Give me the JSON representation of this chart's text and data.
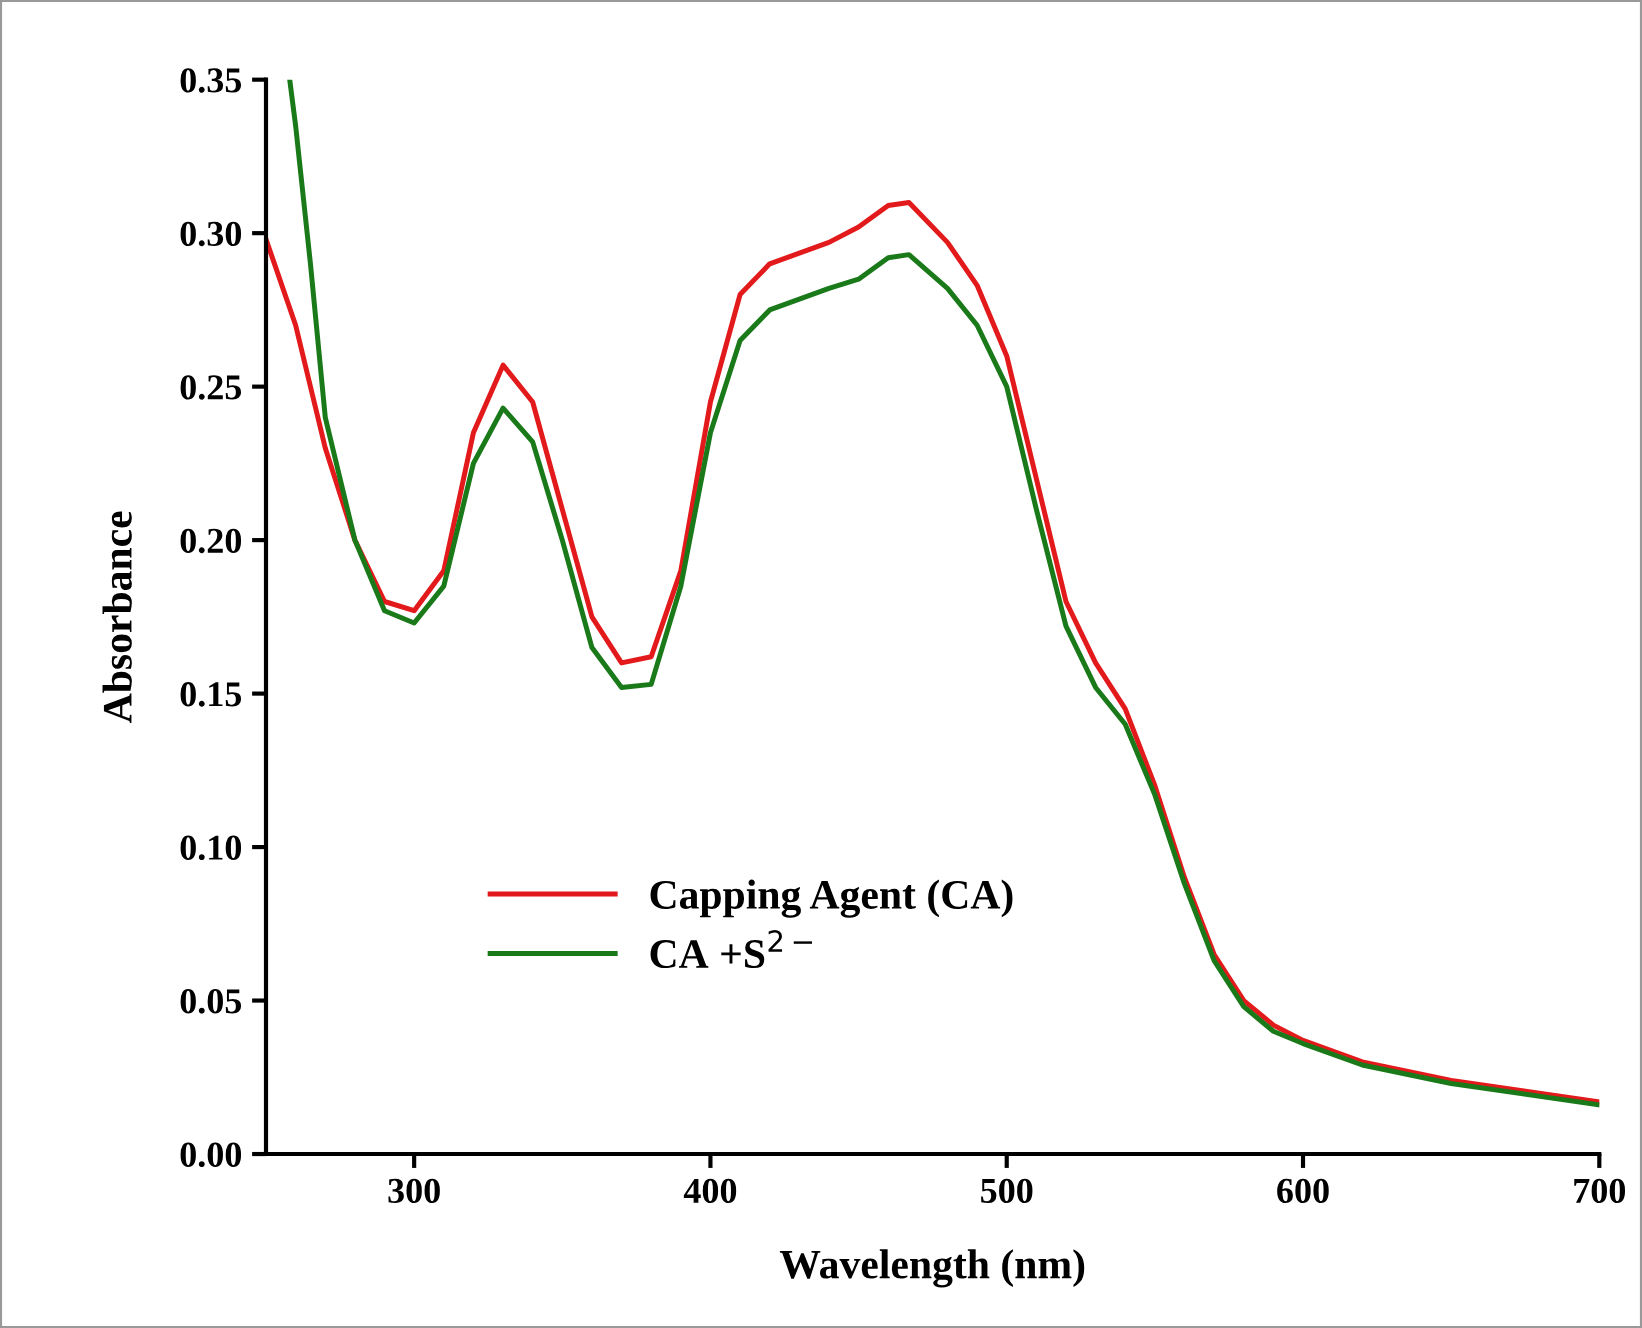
{
  "chart_data": {
    "type": "line",
    "xlabel": "Wavelength (nm)",
    "ylabel": "Absorbance",
    "xlim": [
      250,
      700
    ],
    "xticks": [
      300,
      400,
      500,
      600,
      700
    ],
    "ylim": [
      0,
      0.35
    ],
    "yticks": [
      {
        "value": 0,
        "label": "0.00"
      },
      {
        "value": 0.05,
        "label": "0.05"
      },
      {
        "value": 0.1,
        "label": "0.10"
      },
      {
        "value": 0.15,
        "label": "0.15"
      },
      {
        "value": 0.2,
        "label": "0.20"
      },
      {
        "value": 0.25,
        "label": "0.25"
      },
      {
        "value": 0.3,
        "label": "0.30"
      },
      {
        "value": 0.35,
        "label": "0.35"
      }
    ],
    "grid": false,
    "legend": "bottom left",
    "marker": "none",
    "line_style": "solid",
    "series": [
      {
        "name": "Capping Agent (CA)",
        "color": "#e31a1c",
        "x": [
          250,
          260,
          270,
          280,
          290,
          300,
          310,
          320,
          330,
          340,
          350,
          360,
          370,
          380,
          390,
          400,
          410,
          420,
          440,
          450,
          460,
          467,
          480,
          490,
          500,
          510,
          520,
          530,
          540,
          550,
          560,
          570,
          580,
          590,
          600,
          620,
          650,
          700
        ],
        "values": [
          0.298,
          0.27,
          0.23,
          0.2,
          0.18,
          0.177,
          0.19,
          0.235,
          0.257,
          0.245,
          0.21,
          0.175,
          0.16,
          0.162,
          0.19,
          0.245,
          0.28,
          0.29,
          0.297,
          0.302,
          0.309,
          0.31,
          0.297,
          0.283,
          0.26,
          0.22,
          0.18,
          0.16,
          0.145,
          0.12,
          0.09,
          0.065,
          0.05,
          0.042,
          0.037,
          0.03,
          0.024,
          0.017
        ]
      },
      {
        "name": "CA +S$^{2−}$",
        "color": "#1a7a1a",
        "x": [
          258,
          260,
          265,
          270,
          280,
          290,
          300,
          310,
          320,
          330,
          340,
          350,
          360,
          370,
          380,
          390,
          400,
          410,
          420,
          440,
          450,
          460,
          467,
          480,
          490,
          500,
          510,
          520,
          530,
          540,
          550,
          560,
          570,
          580,
          590,
          600,
          620,
          650,
          700
        ],
        "values": [
          0.35,
          0.335,
          0.29,
          0.24,
          0.2,
          0.177,
          0.173,
          0.185,
          0.225,
          0.243,
          0.232,
          0.2,
          0.165,
          0.152,
          0.153,
          0.185,
          0.235,
          0.265,
          0.275,
          0.282,
          0.285,
          0.292,
          0.293,
          0.282,
          0.27,
          0.25,
          0.21,
          0.172,
          0.152,
          0.14,
          0.117,
          0.088,
          0.063,
          0.048,
          0.04,
          0.036,
          0.029,
          0.023,
          0.016
        ]
      }
    ]
  }
}
